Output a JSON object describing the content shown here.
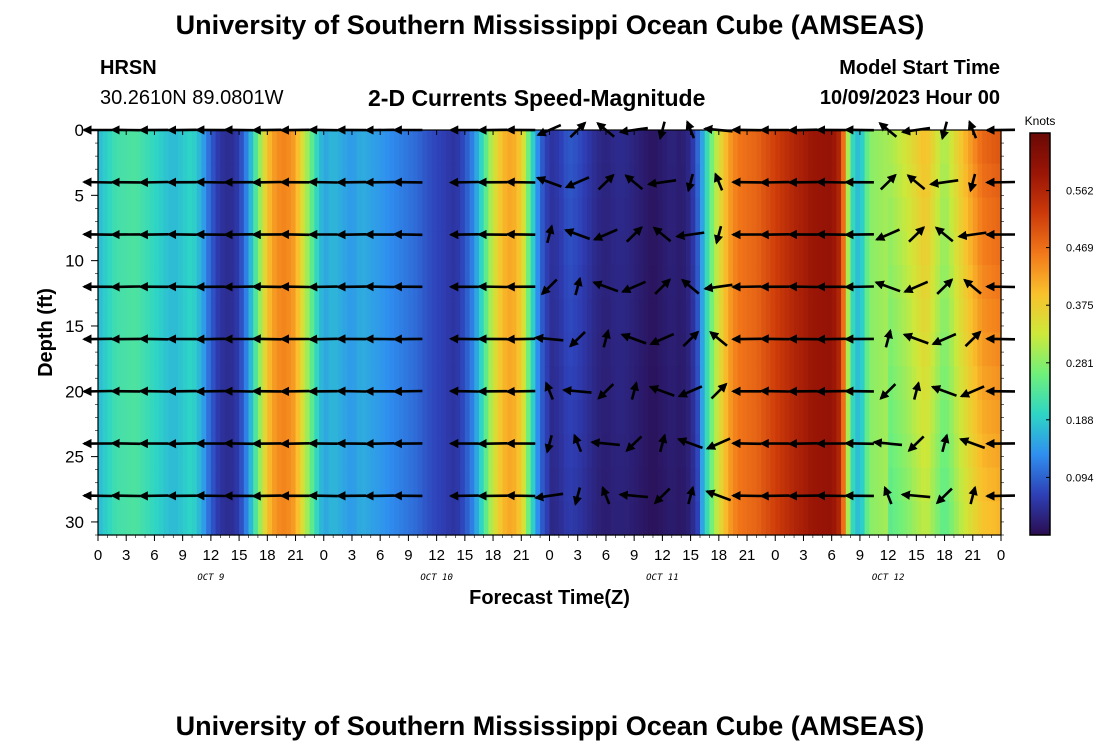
{
  "header": {
    "title": "University of Southern Mississippi Ocean Cube (AMSEAS)",
    "station": "HRSN",
    "coords": "30.2610N  89.0801W",
    "subtitle": "2-D Currents Speed-Magnitude",
    "model_start_label": "Model Start Time",
    "model_start_value": "10/09/2023 Hour 00"
  },
  "footer": {
    "title": "University of Southern Mississippi Ocean Cube (AMSEAS)"
  },
  "chart_data": {
    "type": "heatmap",
    "title": "2-D Currents Speed-Magnitude",
    "xlabel": "Forecast Time(Z)",
    "ylabel": "Depth (ft)",
    "x_tick_labels": [
      "0",
      "3",
      "6",
      "9",
      "12",
      "15",
      "18",
      "21",
      "0",
      "3",
      "6",
      "9",
      "12",
      "15",
      "18",
      "21",
      "0",
      "3",
      "6",
      "9",
      "12",
      "15",
      "18",
      "21",
      "0",
      "3",
      "6",
      "9",
      "12",
      "15",
      "18",
      "21",
      "0"
    ],
    "x_range_hours": [
      0,
      96
    ],
    "day_labels": [
      {
        "text": "OCT 9",
        "hour": 12
      },
      {
        "text": "OCT 10",
        "hour": 36
      },
      {
        "text": "OCT 11",
        "hour": 60
      },
      {
        "text": "OCT 12",
        "hour": 84
      }
    ],
    "y_ticks": [
      0,
      5,
      10,
      15,
      20,
      25,
      30
    ],
    "y_range_ft": [
      0,
      31
    ],
    "colorbar": {
      "label": "Knots",
      "ticks": [
        "0.094",
        "0.188",
        "0.281",
        "0.375",
        "0.469",
        "0.562"
      ],
      "range": [
        0,
        0.656
      ],
      "colors": [
        "#2a0d50",
        "#2e3fb6",
        "#2f8ff0",
        "#2ed5c5",
        "#6ef07a",
        "#cde83a",
        "#f9c12c",
        "#f2781a",
        "#cc3a0a",
        "#9a1506",
        "#6a0905"
      ]
    },
    "speed_profile_by_hour": [
      [
        0,
        0.17
      ],
      [
        2,
        0.22
      ],
      [
        4,
        0.23
      ],
      [
        6,
        0.2
      ],
      [
        8,
        0.17
      ],
      [
        10,
        0.2
      ],
      [
        11,
        0.16
      ],
      [
        12,
        0.09
      ],
      [
        13,
        0.05
      ],
      [
        14,
        0.04
      ],
      [
        15,
        0.06
      ],
      [
        16,
        0.14
      ],
      [
        17,
        0.26
      ],
      [
        18,
        0.39
      ],
      [
        19,
        0.44
      ],
      [
        20,
        0.45
      ],
      [
        21,
        0.42
      ],
      [
        22,
        0.32
      ],
      [
        23,
        0.22
      ],
      [
        24,
        0.15
      ],
      [
        25,
        0.17
      ],
      [
        27,
        0.14
      ],
      [
        28,
        0.16
      ],
      [
        30,
        0.14
      ],
      [
        32,
        0.12
      ],
      [
        34,
        0.1
      ],
      [
        35,
        0.08
      ],
      [
        36,
        0.07
      ],
      [
        37,
        0.06
      ],
      [
        38,
        0.05
      ],
      [
        39,
        0.08
      ],
      [
        40,
        0.13
      ],
      [
        41,
        0.22
      ],
      [
        42,
        0.33
      ],
      [
        43,
        0.4
      ],
      [
        44,
        0.42
      ],
      [
        45,
        0.38
      ],
      [
        46,
        0.22
      ],
      [
        47,
        0.1
      ],
      [
        48,
        0.05
      ],
      [
        49,
        0.06
      ],
      [
        50,
        0.09
      ],
      [
        51,
        0.08
      ],
      [
        52,
        0.06
      ],
      [
        53,
        0.04
      ],
      [
        54,
        0.03
      ],
      [
        55,
        0.04
      ],
      [
        56,
        0.04
      ],
      [
        57,
        0.03
      ],
      [
        58,
        0.02
      ],
      [
        59,
        0.01
      ],
      [
        60,
        0.02
      ],
      [
        61,
        0.03
      ],
      [
        62,
        0.02
      ],
      [
        63,
        0.04
      ],
      [
        64,
        0.12
      ],
      [
        65,
        0.24
      ],
      [
        66,
        0.34
      ],
      [
        67,
        0.42
      ],
      [
        68,
        0.46
      ],
      [
        70,
        0.48
      ],
      [
        72,
        0.52
      ],
      [
        74,
        0.56
      ],
      [
        76,
        0.59
      ],
      [
        78,
        0.6
      ],
      [
        79,
        0.55
      ],
      [
        80,
        0.22
      ],
      [
        81,
        0.16
      ],
      [
        82,
        0.28
      ],
      [
        84,
        0.3
      ],
      [
        86,
        0.34
      ],
      [
        88,
        0.4
      ],
      [
        90,
        0.3
      ],
      [
        92,
        0.4
      ],
      [
        94,
        0.48
      ],
      [
        96,
        0.5
      ]
    ],
    "vector_depths_ft": [
      0,
      4,
      8,
      12,
      16,
      20,
      24,
      28
    ],
    "vector_hours": [
      0,
      3,
      6,
      9,
      12,
      15,
      18,
      21,
      24,
      27,
      30,
      33,
      36,
      39,
      42,
      45,
      48,
      51,
      54,
      57,
      60,
      63,
      66,
      69,
      72,
      75,
      78,
      81,
      84,
      87,
      90,
      93,
      96
    ]
  }
}
